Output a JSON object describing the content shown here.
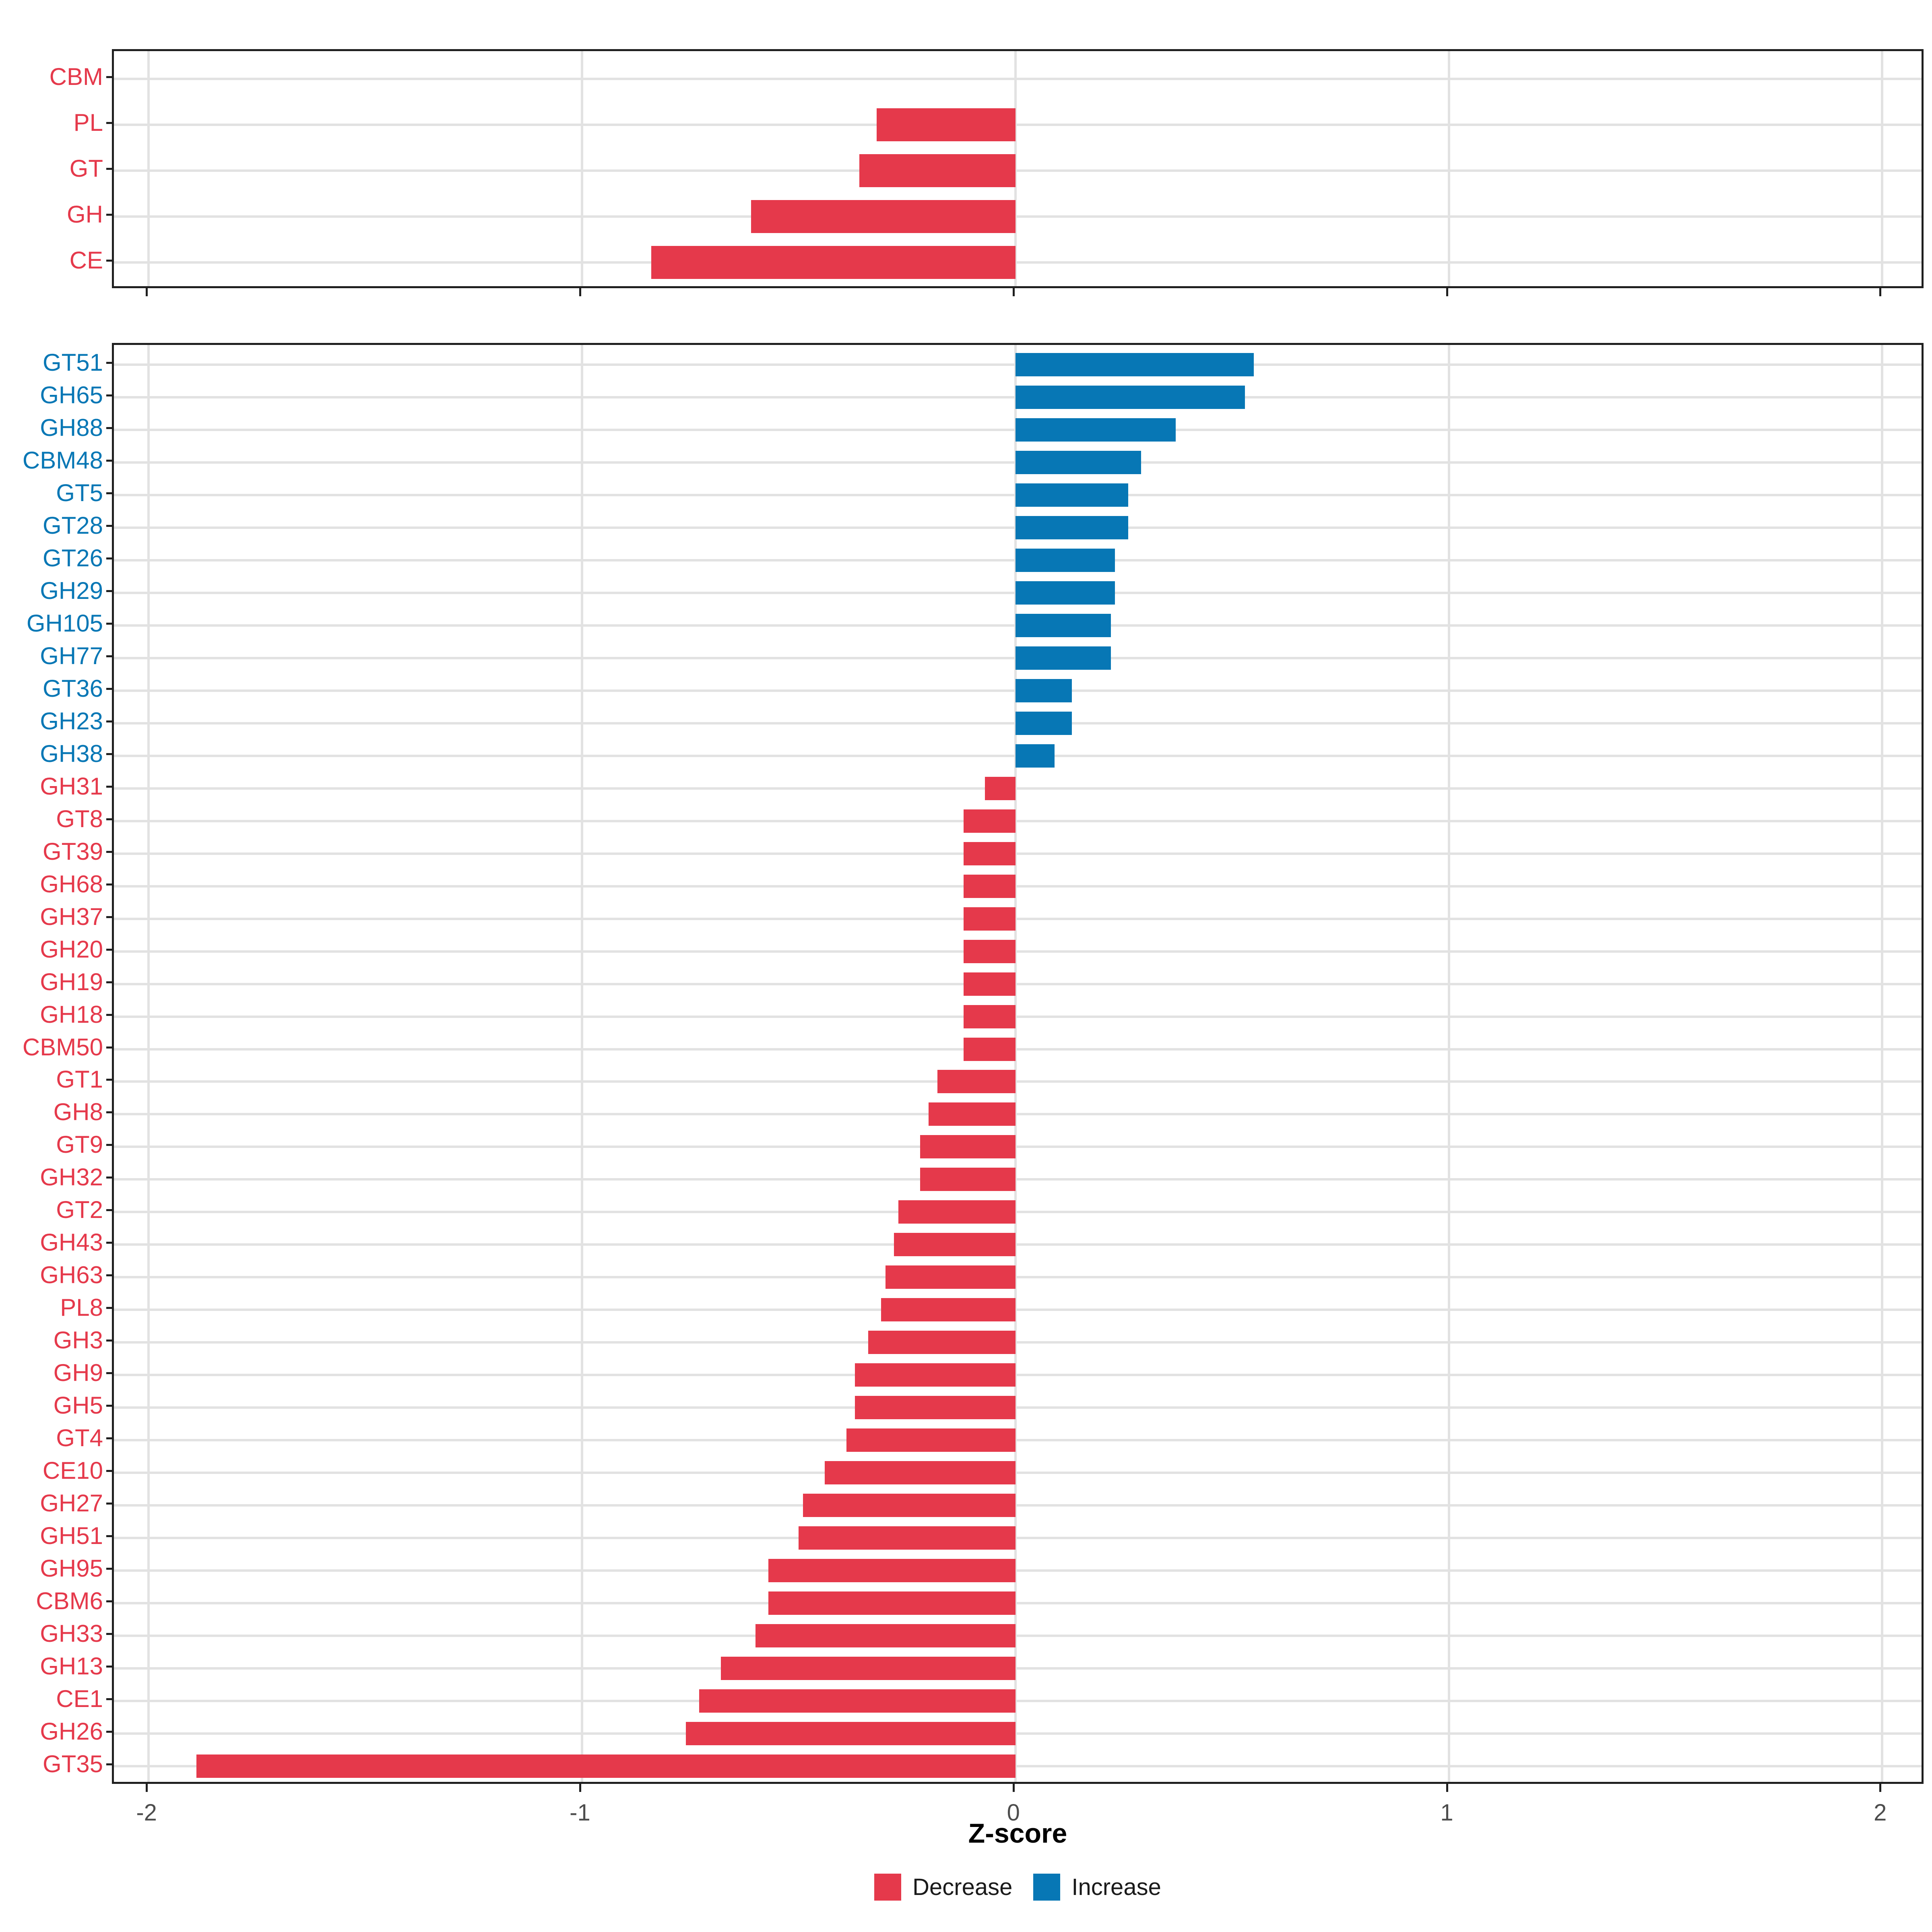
{
  "colors": {
    "decrease": "#E5394B",
    "increase": "#0777B5",
    "grid": "#E2E2E2",
    "panel_border": "#1F1F1F",
    "axis_tick_text": "#4D4D4D",
    "text": "#1A1A1A"
  },
  "axis": {
    "title": "Z-score",
    "tick_labels": [
      "-2",
      "-1",
      "0",
      "1",
      "2"
    ]
  },
  "legend": {
    "items": [
      {
        "label": "Decrease",
        "color": "#E5394B"
      },
      {
        "label": "Increase",
        "color": "#0777B5"
      }
    ]
  },
  "chart_data": [
    {
      "type": "bar",
      "panel": "top",
      "orientation": "horizontal",
      "title": "",
      "xlabel": "Z-score",
      "ylabel": "",
      "grid": true,
      "xlim": [
        -2.08,
        2.1
      ],
      "xticks": [
        -2,
        -1,
        0,
        1,
        2
      ],
      "show_x_labels": false,
      "categories": [
        "CBM",
        "PL",
        "GT",
        "GH",
        "CE"
      ],
      "values": [
        0,
        -0.32,
        -0.36,
        -0.61,
        -0.84
      ],
      "groups": [
        "decrease",
        "decrease",
        "decrease",
        "decrease",
        "decrease"
      ]
    },
    {
      "type": "bar",
      "panel": "bottom",
      "orientation": "horizontal",
      "title": "",
      "xlabel": "Z-score",
      "ylabel": "",
      "grid": true,
      "xlim": [
        -2.08,
        2.1
      ],
      "xticks": [
        -2,
        -1,
        0,
        1,
        2
      ],
      "show_x_labels": true,
      "categories": [
        "GT51",
        "GH65",
        "GH88",
        "CBM48",
        "GT5",
        "GT28",
        "GT26",
        "GH29",
        "GH105",
        "GH77",
        "GT36",
        "GH23",
        "GH38",
        "GH31",
        "GT8",
        "GT39",
        "GH68",
        "GH37",
        "GH20",
        "GH19",
        "GH18",
        "CBM50",
        "GT1",
        "GH8",
        "GT9",
        "GH32",
        "GT2",
        "GH43",
        "GH63",
        "PL8",
        "GH3",
        "GH9",
        "GH5",
        "GT4",
        "CE10",
        "GH27",
        "GH51",
        "GH95",
        "CBM6",
        "GH33",
        "GH13",
        "CE1",
        "GH26",
        "GT35"
      ],
      "values": [
        0.55,
        0.53,
        0.37,
        0.29,
        0.26,
        0.26,
        0.23,
        0.23,
        0.22,
        0.22,
        0.13,
        0.13,
        0.09,
        -0.07,
        -0.12,
        -0.12,
        -0.12,
        -0.12,
        -0.12,
        -0.12,
        -0.12,
        -0.12,
        -0.18,
        -0.2,
        -0.22,
        -0.22,
        -0.27,
        -0.28,
        -0.3,
        -0.31,
        -0.34,
        -0.37,
        -0.37,
        -0.39,
        -0.44,
        -0.49,
        -0.5,
        -0.57,
        -0.57,
        -0.6,
        -0.68,
        -0.73,
        -0.76,
        -1.89
      ],
      "groups": [
        "increase",
        "increase",
        "increase",
        "increase",
        "increase",
        "increase",
        "increase",
        "increase",
        "increase",
        "increase",
        "increase",
        "increase",
        "increase",
        "decrease",
        "decrease",
        "decrease",
        "decrease",
        "decrease",
        "decrease",
        "decrease",
        "decrease",
        "decrease",
        "decrease",
        "decrease",
        "decrease",
        "decrease",
        "decrease",
        "decrease",
        "decrease",
        "decrease",
        "decrease",
        "decrease",
        "decrease",
        "decrease",
        "decrease",
        "decrease",
        "decrease",
        "decrease",
        "decrease",
        "decrease",
        "decrease",
        "decrease",
        "decrease",
        "decrease"
      ]
    }
  ]
}
